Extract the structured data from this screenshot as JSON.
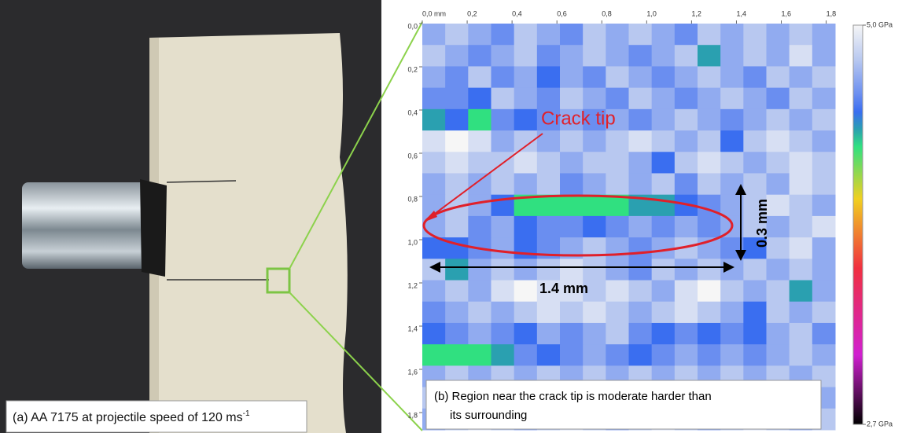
{
  "panel_a": {
    "caption": "(a) AA 7175 at projectile speed of 120 ms",
    "caption_superscript": "-1"
  },
  "chart_data": {
    "type": "heatmap",
    "xlim": [
      0,
      1.84
    ],
    "ylim": [
      0,
      1.88
    ],
    "xticks": [
      {
        "value": 0,
        "label": "0,0 mm"
      },
      {
        "value": 0.2,
        "label": "0,2"
      },
      {
        "value": 0.4,
        "label": "0,4"
      },
      {
        "value": 0.6,
        "label": "0,6"
      },
      {
        "value": 0.8,
        "label": "0,8"
      },
      {
        "value": 1.0,
        "label": "1,0"
      },
      {
        "value": 1.2,
        "label": "1,2"
      },
      {
        "value": 1.4,
        "label": "1,4"
      },
      {
        "value": 1.6,
        "label": "1,6"
      },
      {
        "value": 1.8,
        "label": "1,8"
      }
    ],
    "yticks": [
      {
        "value": 0,
        "label": "0,0"
      },
      {
        "value": 0.2,
        "label": "0,2"
      },
      {
        "value": 0.4,
        "label": "0,4"
      },
      {
        "value": 0.6,
        "label": "0,6"
      },
      {
        "value": 0.8,
        "label": "0,8"
      },
      {
        "value": 1.0,
        "label": "1,0"
      },
      {
        "value": 1.2,
        "label": "1,2"
      },
      {
        "value": 1.4,
        "label": "1,4"
      },
      {
        "value": 1.6,
        "label": "1,6"
      },
      {
        "value": 1.8,
        "label": "1,8"
      }
    ],
    "colorbar_lim": [
      2.7,
      5.0
    ],
    "colorbar_ticks": [
      {
        "value": 5.0,
        "label": "5,0 GPa"
      },
      {
        "value": 2.7,
        "label": "2,7 GPa"
      }
    ],
    "colorscale": [
      {
        "value": 2.7,
        "color": "#000000"
      },
      {
        "value": 3.1,
        "color": "#d020d0"
      },
      {
        "value": 3.6,
        "color": "#f03040"
      },
      {
        "value": 4.0,
        "color": "#f0d020"
      },
      {
        "value": 4.3,
        "color": "#30e080"
      },
      {
        "value": 4.4,
        "color": "#2aa0b0"
      },
      {
        "value": 4.5,
        "color": "#3a6ef0"
      },
      {
        "value": 4.6,
        "color": "#6a8ef0"
      },
      {
        "value": 4.8,
        "color": "#b8c8f0"
      },
      {
        "value": 5.0,
        "color": "#f6f6f6"
      }
    ],
    "values": [
      [
        4.7,
        4.8,
        4.7,
        4.6,
        4.8,
        4.7,
        4.6,
        4.8,
        4.7,
        4.8,
        4.7,
        4.6,
        4.8,
        4.7,
        4.8,
        4.7,
        4.8,
        4.7
      ],
      [
        4.8,
        4.7,
        4.6,
        4.7,
        4.8,
        4.6,
        4.7,
        4.8,
        4.7,
        4.6,
        4.7,
        4.8,
        4.4,
        4.7,
        4.8,
        4.7,
        4.9,
        4.7
      ],
      [
        4.7,
        4.6,
        4.8,
        4.6,
        4.7,
        4.5,
        4.7,
        4.6,
        4.8,
        4.7,
        4.6,
        4.7,
        4.8,
        4.7,
        4.6,
        4.8,
        4.7,
        4.8
      ],
      [
        4.6,
        4.6,
        4.5,
        4.8,
        4.7,
        4.6,
        4.8,
        4.7,
        4.6,
        4.8,
        4.7,
        4.6,
        4.7,
        4.8,
        4.7,
        4.6,
        4.8,
        4.7
      ],
      [
        4.4,
        4.5,
        4.3,
        4.6,
        4.5,
        4.6,
        4.7,
        4.6,
        4.7,
        4.6,
        4.7,
        4.8,
        4.7,
        4.6,
        4.7,
        4.8,
        4.7,
        4.8
      ],
      [
        4.9,
        5.0,
        4.9,
        4.7,
        4.8,
        4.7,
        4.8,
        4.7,
        4.8,
        4.9,
        4.8,
        4.7,
        4.8,
        4.5,
        4.8,
        4.9,
        4.8,
        4.7
      ],
      [
        4.8,
        4.9,
        4.8,
        4.8,
        4.9,
        4.8,
        4.7,
        4.8,
        4.8,
        4.7,
        4.5,
        4.8,
        4.9,
        4.8,
        4.7,
        4.8,
        4.9,
        4.8
      ],
      [
        4.7,
        4.8,
        4.7,
        4.8,
        4.7,
        4.8,
        4.6,
        4.7,
        4.8,
        4.7,
        4.8,
        4.6,
        4.8,
        4.7,
        4.8,
        4.7,
        4.9,
        4.8
      ],
      [
        4.7,
        4.8,
        4.7,
        4.5,
        4.3,
        4.3,
        4.3,
        4.3,
        4.3,
        4.4,
        4.4,
        4.5,
        4.6,
        4.7,
        4.8,
        4.9,
        4.8,
        4.7
      ],
      [
        4.7,
        4.8,
        4.6,
        4.7,
        4.5,
        4.6,
        4.6,
        4.5,
        4.6,
        4.7,
        4.6,
        4.7,
        4.6,
        4.7,
        4.8,
        4.7,
        4.8,
        4.9
      ],
      [
        4.5,
        4.5,
        4.6,
        4.7,
        4.5,
        4.6,
        4.7,
        4.8,
        4.7,
        4.6,
        4.7,
        4.8,
        4.7,
        4.6,
        4.5,
        4.8,
        4.9,
        4.7
      ],
      [
        4.8,
        4.4,
        4.7,
        4.8,
        4.7,
        4.8,
        4.9,
        4.8,
        4.7,
        4.6,
        4.8,
        4.7,
        4.8,
        4.7,
        4.8,
        4.7,
        4.8,
        4.7
      ],
      [
        4.7,
        4.8,
        4.7,
        4.9,
        5.0,
        4.9,
        4.9,
        4.8,
        4.9,
        4.8,
        4.7,
        4.9,
        5.0,
        4.8,
        4.7,
        4.8,
        4.4,
        4.7
      ],
      [
        4.6,
        4.7,
        4.8,
        4.7,
        4.8,
        4.9,
        4.8,
        4.9,
        4.8,
        4.7,
        4.8,
        4.9,
        4.8,
        4.7,
        4.5,
        4.8,
        4.7,
        4.8
      ],
      [
        4.5,
        4.6,
        4.7,
        4.6,
        4.5,
        4.7,
        4.6,
        4.7,
        4.8,
        4.6,
        4.5,
        4.6,
        4.5,
        4.6,
        4.5,
        4.7,
        4.8,
        4.6
      ],
      [
        4.3,
        4.3,
        4.3,
        4.4,
        4.6,
        4.5,
        4.6,
        4.7,
        4.6,
        4.5,
        4.6,
        4.7,
        4.6,
        4.7,
        4.6,
        4.7,
        4.8,
        4.7
      ],
      [
        4.7,
        4.8,
        4.7,
        4.8,
        4.7,
        4.8,
        4.7,
        4.8,
        4.7,
        4.8,
        4.7,
        4.8,
        4.7,
        4.8,
        4.7,
        4.8,
        4.7,
        4.8
      ],
      [
        4.8,
        4.7,
        4.8,
        4.9,
        4.8,
        4.7,
        4.8,
        4.9,
        4.8,
        4.7,
        4.8,
        4.9,
        4.8,
        4.7,
        4.8,
        4.9,
        4.8,
        4.7
      ],
      [
        4.7,
        4.8,
        4.9,
        4.8,
        4.7,
        4.8,
        4.9,
        4.8,
        4.7,
        4.8,
        4.9,
        4.8,
        4.7,
        4.8,
        4.9,
        4.8,
        4.7,
        4.8
      ]
    ],
    "annotations": {
      "crack_tip": "Crack tip",
      "length": "1.4 mm",
      "width": "0.3 mm",
      "caption_line1": "(b) Region  near the crack tip is  moderate harder than",
      "caption_line2": "its surrounding"
    }
  }
}
